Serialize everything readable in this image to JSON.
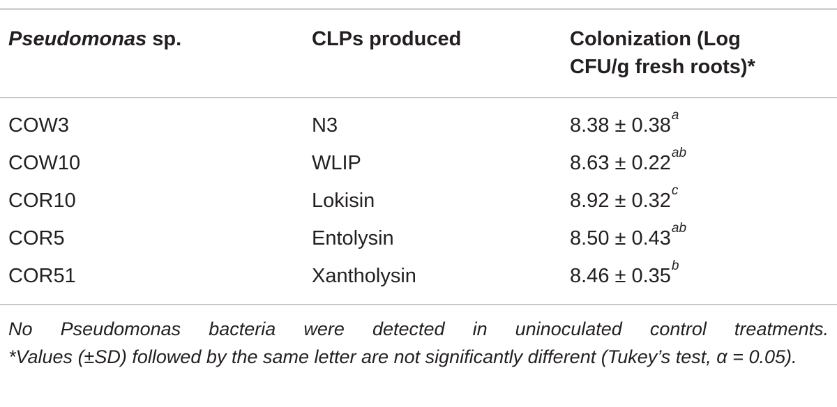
{
  "table": {
    "headers": {
      "col1_italic": "Pseudomonas",
      "col1_rest": " sp.",
      "col2": "CLPs produced",
      "col3_line1": "Colonization (Log",
      "col3_line2": "CFU/g fresh roots)*"
    },
    "rows": [
      {
        "strain": "COW3",
        "clp": "N3",
        "value": "8.38 ± 0.38",
        "letter": "a"
      },
      {
        "strain": "COW10",
        "clp": "WLIP",
        "value": "8.63 ± 0.22",
        "letter": "ab"
      },
      {
        "strain": "COR10",
        "clp": "Lokisin",
        "value": "8.92 ± 0.32",
        "letter": "c"
      },
      {
        "strain": "COR5",
        "clp": "Entolysin",
        "value": "8.50 ± 0.43",
        "letter": "ab"
      },
      {
        "strain": "COR51",
        "clp": "Xantholysin",
        "value": "8.46 ± 0.35",
        "letter": "b"
      }
    ]
  },
  "footnote": {
    "line1": "No Pseudomonas bacteria were detected in uninoculated control treatments.",
    "line2": "*Values (±SD) followed by the same letter are not significantly different (Tukey’s test, α = 0.05)."
  }
}
